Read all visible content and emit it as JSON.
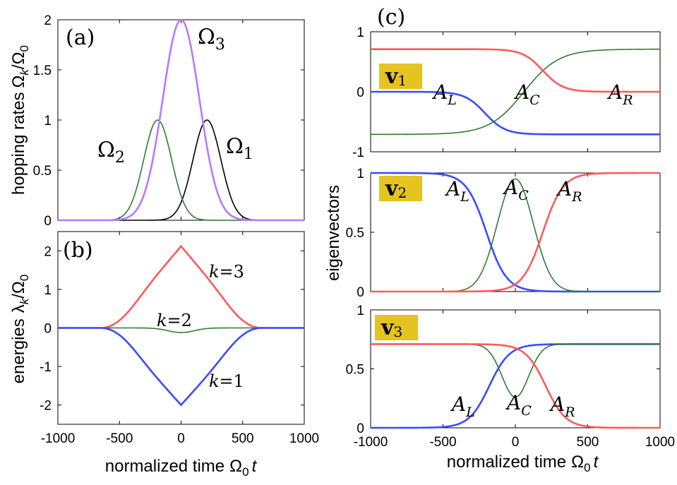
{
  "chart_data": [
    {
      "id": "a",
      "type": "line",
      "panel_label": "(a)",
      "ylabel": "hopping rates",
      "ylabel_math": "Ω",
      "ylabel_sub": "k",
      "ylabel_tail": "/Ω",
      "ylabel_sub2": "0",
      "xlim": [
        -1000,
        1000
      ],
      "ylim": [
        0,
        2
      ],
      "xticks": [],
      "yticks": [
        "0",
        "0.5",
        "1",
        "1.5",
        "2"
      ],
      "ytick_values": [
        0,
        0.5,
        1,
        1.5,
        2
      ],
      "series": [
        {
          "name": "Ω1",
          "color": "#000000",
          "kind": "gauss",
          "amp": 1.0,
          "center": 210,
          "width": 160
        },
        {
          "name": "Ω2",
          "color": "#2e7d32",
          "kind": "gauss",
          "amp": 1.0,
          "center": -190,
          "width": 160
        },
        {
          "name": "Ω3",
          "color": "#b57bff",
          "kind": "gauss",
          "amp": 2.0,
          "center": 0,
          "width": 210
        }
      ],
      "annotations": [
        {
          "id": "o3",
          "main": "Ω",
          "sub": "3"
        },
        {
          "id": "o2",
          "main": "Ω",
          "sub": "2"
        },
        {
          "id": "o1",
          "main": "Ω",
          "sub": "1"
        }
      ]
    },
    {
      "id": "b",
      "type": "line",
      "panel_label": "(b)",
      "ylabel": "energies",
      "ylabel_math": "λ",
      "ylabel_sub": "k",
      "ylabel_tail": "/Ω",
      "ylabel_sub2": "0",
      "xlabel": "normalized time",
      "xlabel_math": "Ω",
      "xlabel_sub": "0",
      "xlabel_tail": "t",
      "xlim": [
        -1000,
        1000
      ],
      "ylim": [
        -2.5,
        2.5
      ],
      "xticks": [
        "-1000",
        "-500",
        "0",
        "500",
        "1000"
      ],
      "xtick_values": [
        -1000,
        -500,
        0,
        500,
        1000
      ],
      "yticks": [
        "-2",
        "-1",
        "0",
        "1",
        "2"
      ],
      "ytick_values": [
        -2,
        -1,
        0,
        1,
        2
      ],
      "series": [
        {
          "name": "k=3",
          "color": "#ff5a5a",
          "kind": "energy",
          "sign": 1,
          "peak": 2.12
        },
        {
          "name": "k=2",
          "color": "#2e7d32",
          "kind": "dip",
          "amp": -0.12,
          "width": 150
        },
        {
          "name": "k=1",
          "color": "#3a4cff",
          "kind": "energy",
          "sign": -1,
          "peak": 2.0
        }
      ],
      "annotations": [
        {
          "id": "k3",
          "pre": "k",
          "post": "=3"
        },
        {
          "id": "k2",
          "pre": "k",
          "post": "=2"
        },
        {
          "id": "k1",
          "pre": "k",
          "post": "=1"
        }
      ]
    },
    {
      "id": "c1",
      "type": "line",
      "panel_label": "(c)",
      "badge": "v",
      "badge_sub": "1",
      "xlim": [
        -1000,
        1000
      ],
      "ylim": [
        -1,
        1
      ],
      "xticks": [],
      "yticks": [
        "-1",
        "0",
        "1"
      ],
      "ytick_values": [
        -1,
        0,
        1
      ],
      "series": [
        {
          "name": "A_L",
          "color": "#3a4cff",
          "kind": "sig",
          "from": 0.0,
          "to": -0.71,
          "center": -210,
          "width": 70
        },
        {
          "name": "A_C",
          "color": "#2e7d32",
          "kind": "sig",
          "from": -0.71,
          "to": 0.71,
          "center": 60,
          "width": 120
        },
        {
          "name": "A_R",
          "color": "#ff5a5a",
          "kind": "sig",
          "from": 0.71,
          "to": 0.0,
          "center": 190,
          "width": 70
        }
      ],
      "annotations": [
        {
          "id": "AL",
          "main": "A",
          "sub": "L"
        },
        {
          "id": "AC",
          "main": "A",
          "sub": "C"
        },
        {
          "id": "AR",
          "main": "A",
          "sub": "R"
        }
      ]
    },
    {
      "id": "c2",
      "type": "line",
      "ylabel": "eigenvectors",
      "badge": "v",
      "badge_sub": "2",
      "xlim": [
        -1000,
        1000
      ],
      "ylim": [
        0,
        1
      ],
      "xticks": [],
      "yticks": [
        "0",
        "0.5",
        "1"
      ],
      "ytick_values": [
        0,
        0.5,
        1
      ],
      "series": [
        {
          "name": "A_L",
          "color": "#3a4cff",
          "kind": "sig",
          "from": 1.0,
          "to": 0.0,
          "center": -200,
          "width": 70
        },
        {
          "name": "A_C",
          "color": "#2e7d32",
          "kind": "gauss",
          "amp": 0.95,
          "center": 0,
          "width": 175
        },
        {
          "name": "A_R",
          "color": "#ff5a5a",
          "kind": "sig",
          "from": 0.0,
          "to": 1.0,
          "center": 190,
          "width": 70
        }
      ],
      "annotations": [
        {
          "id": "AL",
          "main": "A",
          "sub": "L"
        },
        {
          "id": "AC",
          "main": "A",
          "sub": "C"
        },
        {
          "id": "AR",
          "main": "A",
          "sub": "R"
        }
      ]
    },
    {
      "id": "c3",
      "type": "line",
      "badge": "v",
      "badge_sub": "3",
      "xlabel": "normalized time",
      "xlabel_math": "Ω",
      "xlabel_sub": "0",
      "xlabel_tail": "t",
      "xlim": [
        -1000,
        1000
      ],
      "ylim": [
        0,
        1
      ],
      "xticks": [
        "-1000",
        "-500",
        "0",
        "500",
        "1000"
      ],
      "xtick_values": [
        -1000,
        -500,
        0,
        500,
        1000
      ],
      "yticks": [
        "0",
        "0.5",
        "1"
      ],
      "ytick_values": [
        0,
        0.5,
        1
      ],
      "series": [
        {
          "name": "A_L",
          "color": "#3a4cff",
          "kind": "sig",
          "from": 0.0,
          "to": 0.71,
          "center": -180,
          "width": 70
        },
        {
          "name": "A_C",
          "color": "#2e7d32",
          "kind": "dipbase",
          "base": 0.71,
          "amp": -0.45,
          "center": 0,
          "width": 130
        },
        {
          "name": "A_R",
          "color": "#ff5a5a",
          "kind": "sig",
          "from": 0.71,
          "to": 0.0,
          "center": 210,
          "width": 70
        }
      ],
      "annotations": [
        {
          "id": "AL",
          "main": "A",
          "sub": "L"
        },
        {
          "id": "AC",
          "main": "A",
          "sub": "C"
        },
        {
          "id": "AR",
          "main": "A",
          "sub": "R"
        }
      ]
    }
  ],
  "colors": {
    "frame": "#000000",
    "badge": "#e5c320"
  }
}
